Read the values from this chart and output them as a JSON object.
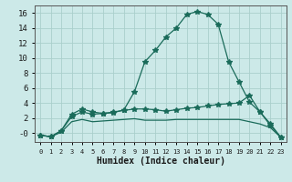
{
  "xlabel": "Humidex (Indice chaleur)",
  "x_values": [
    0,
    1,
    2,
    3,
    4,
    5,
    6,
    7,
    8,
    9,
    10,
    11,
    12,
    13,
    14,
    15,
    16,
    17,
    18,
    19,
    20,
    21,
    22,
    23
  ],
  "line1": [
    -0.3,
    -0.5,
    0.3,
    2.5,
    3.2,
    2.8,
    2.6,
    2.7,
    3.1,
    5.5,
    9.5,
    11.0,
    12.8,
    14.0,
    15.8,
    16.2,
    15.8,
    14.5,
    9.5,
    6.8,
    4.1,
    2.8,
    1.2,
    -0.6
  ],
  "line2": [
    -0.3,
    -0.5,
    0.3,
    2.2,
    2.8,
    2.5,
    2.6,
    2.8,
    3.0,
    3.2,
    3.2,
    3.1,
    2.9,
    3.1,
    3.3,
    3.4,
    3.6,
    3.8,
    3.9,
    4.0,
    5.0,
    2.8,
    1.0,
    -0.6
  ],
  "line3": [
    -0.3,
    -0.5,
    0.1,
    1.5,
    1.8,
    1.5,
    1.6,
    1.7,
    1.8,
    1.9,
    1.7,
    1.7,
    1.7,
    1.8,
    1.8,
    1.8,
    1.8,
    1.8,
    1.8,
    1.8,
    1.5,
    1.2,
    0.7,
    -0.6
  ],
  "bg_color": "#cce9e8",
  "grid_color": "#aacfcc",
  "line_color": "#1a6b5a",
  "ylim": [
    -1.2,
    17
  ],
  "yticks": [
    0,
    2,
    4,
    6,
    8,
    10,
    12,
    14,
    16
  ],
  "ytick_labels": [
    "-0",
    "2",
    "4",
    "6",
    "8",
    "10",
    "12",
    "14",
    "16"
  ],
  "marker": "*",
  "marker_size": 4
}
